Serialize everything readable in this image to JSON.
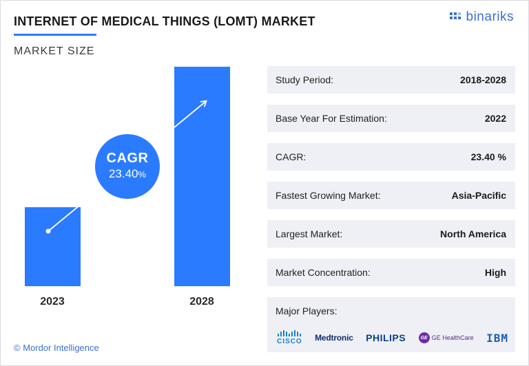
{
  "header": {
    "title": "INTERNET OF MEDICAL THINGS (LOMT) MARKET",
    "subtitle": "MARKET SIZE",
    "brand": "binariks"
  },
  "chart_data": {
    "type": "bar",
    "categories": [
      "2023",
      "2028"
    ],
    "values": [
      0.36,
      1.0
    ],
    "value_note_scale": "relative",
    "bar_color": "#2a7bff",
    "cagr": {
      "title": "CAGR",
      "value": "23.40",
      "unit": "%"
    }
  },
  "stats": [
    {
      "label": "Study Period:",
      "value": "2018-2028"
    },
    {
      "label": "Base Year For Estimation:",
      "value": "2022"
    },
    {
      "label": "CAGR:",
      "value": "23.40 %"
    },
    {
      "label": "Fastest Growing Market:",
      "value": "Asia-Pacific"
    },
    {
      "label": "Largest Market:",
      "value": "North America"
    },
    {
      "label": "Market Concentration:",
      "value": "High"
    }
  ],
  "players": {
    "label": "Major Players:",
    "logos": [
      "CISCO",
      "Medtronic",
      "PHILIPS",
      "GE HealthCare",
      "IBM"
    ],
    "ge_mark": "GE"
  },
  "footer": {
    "source": "© Mordor Intelligence"
  }
}
